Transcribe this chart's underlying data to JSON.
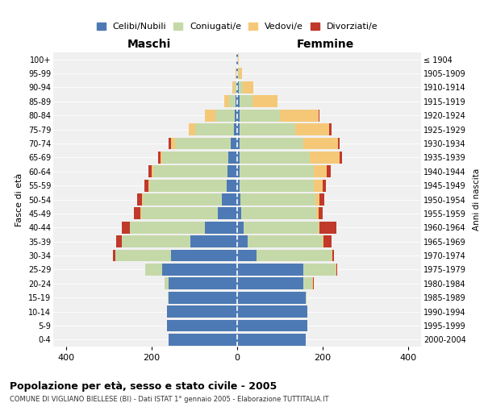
{
  "age_groups": [
    "0-4",
    "5-9",
    "10-14",
    "15-19",
    "20-24",
    "25-29",
    "30-34",
    "35-39",
    "40-44",
    "45-49",
    "50-54",
    "55-59",
    "60-64",
    "65-69",
    "70-74",
    "75-79",
    "80-84",
    "85-89",
    "90-94",
    "95-99",
    "100+"
  ],
  "birth_years": [
    "2000-2004",
    "1995-1999",
    "1990-1994",
    "1985-1989",
    "1980-1984",
    "1975-1979",
    "1970-1974",
    "1965-1969",
    "1960-1964",
    "1955-1959",
    "1950-1954",
    "1945-1949",
    "1940-1944",
    "1935-1939",
    "1930-1934",
    "1925-1929",
    "1920-1924",
    "1915-1919",
    "1910-1914",
    "1905-1909",
    "≤ 1904"
  ],
  "colors": {
    "celibi": "#4d7ab5",
    "coniugati": "#c5d9a8",
    "vedovi": "#f5c878",
    "divorziati": "#c0392b"
  },
  "maschi": {
    "celibi": [
      160,
      165,
      165,
      160,
      160,
      175,
      155,
      110,
      75,
      45,
      35,
      25,
      22,
      20,
      15,
      8,
      5,
      3,
      2,
      1,
      1
    ],
    "coniugati": [
      0,
      0,
      0,
      2,
      10,
      40,
      130,
      160,
      175,
      180,
      185,
      180,
      175,
      155,
      130,
      90,
      45,
      15,
      4,
      1,
      0
    ],
    "vedovi": [
      0,
      0,
      0,
      0,
      0,
      0,
      0,
      0,
      0,
      1,
      2,
      2,
      3,
      5,
      10,
      15,
      25,
      12,
      5,
      2,
      0
    ],
    "divorziati": [
      0,
      0,
      0,
      0,
      0,
      0,
      5,
      12,
      20,
      15,
      12,
      10,
      8,
      5,
      5,
      0,
      0,
      0,
      0,
      0,
      0
    ]
  },
  "femmine": {
    "celibi": [
      160,
      165,
      165,
      160,
      155,
      155,
      45,
      25,
      15,
      10,
      8,
      5,
      5,
      5,
      5,
      5,
      5,
      5,
      3,
      1,
      1
    ],
    "coniugati": [
      0,
      0,
      0,
      2,
      20,
      75,
      175,
      175,
      175,
      175,
      175,
      175,
      175,
      165,
      150,
      130,
      95,
      30,
      10,
      2,
      0
    ],
    "vedovi": [
      0,
      0,
      0,
      0,
      2,
      2,
      2,
      2,
      2,
      5,
      10,
      20,
      30,
      70,
      80,
      80,
      90,
      60,
      25,
      8,
      2
    ],
    "divorziati": [
      0,
      0,
      0,
      0,
      2,
      2,
      5,
      18,
      40,
      10,
      10,
      8,
      8,
      5,
      5,
      5,
      2,
      0,
      0,
      0,
      0
    ]
  },
  "xlim": 430,
  "title": "Popolazione per età, sesso e stato civile - 2005",
  "subtitle": "COMUNE DI VIGLIANO BIELLESE (BI) - Dati ISTAT 1° gennaio 2005 - Elaborazione TUTTITALIA.IT",
  "legend_labels": [
    "Celibi/Nubili",
    "Coniugati/e",
    "Vedovi/e",
    "Divorziati/e"
  ],
  "ylabel_left": "Fasce di età",
  "ylabel_right": "Anni di nascita",
  "xlabel_maschi": "Maschi",
  "xlabel_femmine": "Femmine",
  "bg_color": "#f0f0f0"
}
